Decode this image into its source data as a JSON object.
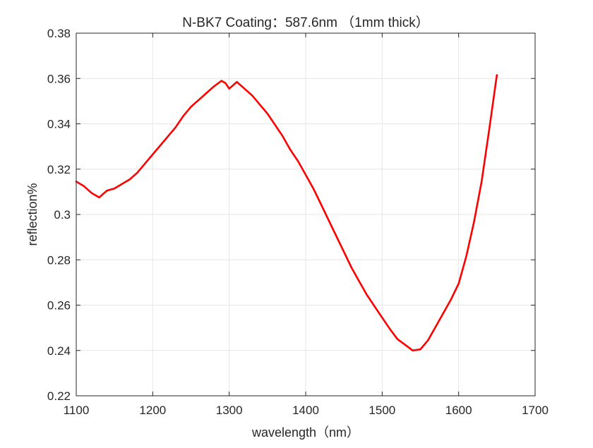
{
  "chart_data": {
    "type": "line",
    "title": "N-BK7 Coating：587.6nm （1mm thick）",
    "xlabel": "wavelength（nm）",
    "ylabel": "reflection%",
    "xlim": [
      1100,
      1700
    ],
    "ylim": [
      0.22,
      0.38
    ],
    "xticks": [
      1100,
      1200,
      1300,
      1400,
      1500,
      1600,
      1700
    ],
    "xtick_labels": [
      "1100",
      "1200",
      "1300",
      "1400",
      "1500",
      "1600",
      "1700"
    ],
    "yticks": [
      0.22,
      0.24,
      0.26,
      0.28,
      0.3,
      0.32,
      0.34,
      0.36,
      0.38
    ],
    "ytick_labels": [
      "0.22",
      "0.24",
      "0.26",
      "0.28",
      "0.3",
      "0.32",
      "0.34",
      "0.36",
      "0.38"
    ],
    "grid": true,
    "series": [
      {
        "color": "#ff0000",
        "x": [
          1100,
          1110,
          1120,
          1130,
          1140,
          1150,
          1160,
          1170,
          1180,
          1190,
          1200,
          1210,
          1220,
          1230,
          1240,
          1250,
          1260,
          1270,
          1280,
          1290,
          1295,
          1300,
          1310,
          1320,
          1330,
          1340,
          1350,
          1360,
          1370,
          1380,
          1390,
          1400,
          1410,
          1420,
          1430,
          1440,
          1450,
          1460,
          1470,
          1480,
          1490,
          1500,
          1510,
          1520,
          1530,
          1540,
          1550,
          1560,
          1570,
          1580,
          1590,
          1600,
          1610,
          1620,
          1630,
          1640,
          1650
        ],
        "values": [
          0.3145,
          0.3125,
          0.3095,
          0.3075,
          0.3105,
          0.3115,
          0.3135,
          0.3155,
          0.3185,
          0.3225,
          0.3265,
          0.3305,
          0.3345,
          0.3385,
          0.3435,
          0.3475,
          0.3505,
          0.3535,
          0.3565,
          0.359,
          0.358,
          0.3555,
          0.3585,
          0.3555,
          0.3525,
          0.3485,
          0.3445,
          0.3395,
          0.3345,
          0.3285,
          0.3235,
          0.3175,
          0.3115,
          0.3045,
          0.2975,
          0.2905,
          0.2835,
          0.2765,
          0.2705,
          0.2645,
          0.2595,
          0.2545,
          0.2495,
          0.245,
          0.2425,
          0.24,
          0.2405,
          0.2445,
          0.2505,
          0.2565,
          0.2625,
          0.2695,
          0.2815,
          0.2965,
          0.3145,
          0.3375,
          0.3615
        ]
      }
    ]
  }
}
